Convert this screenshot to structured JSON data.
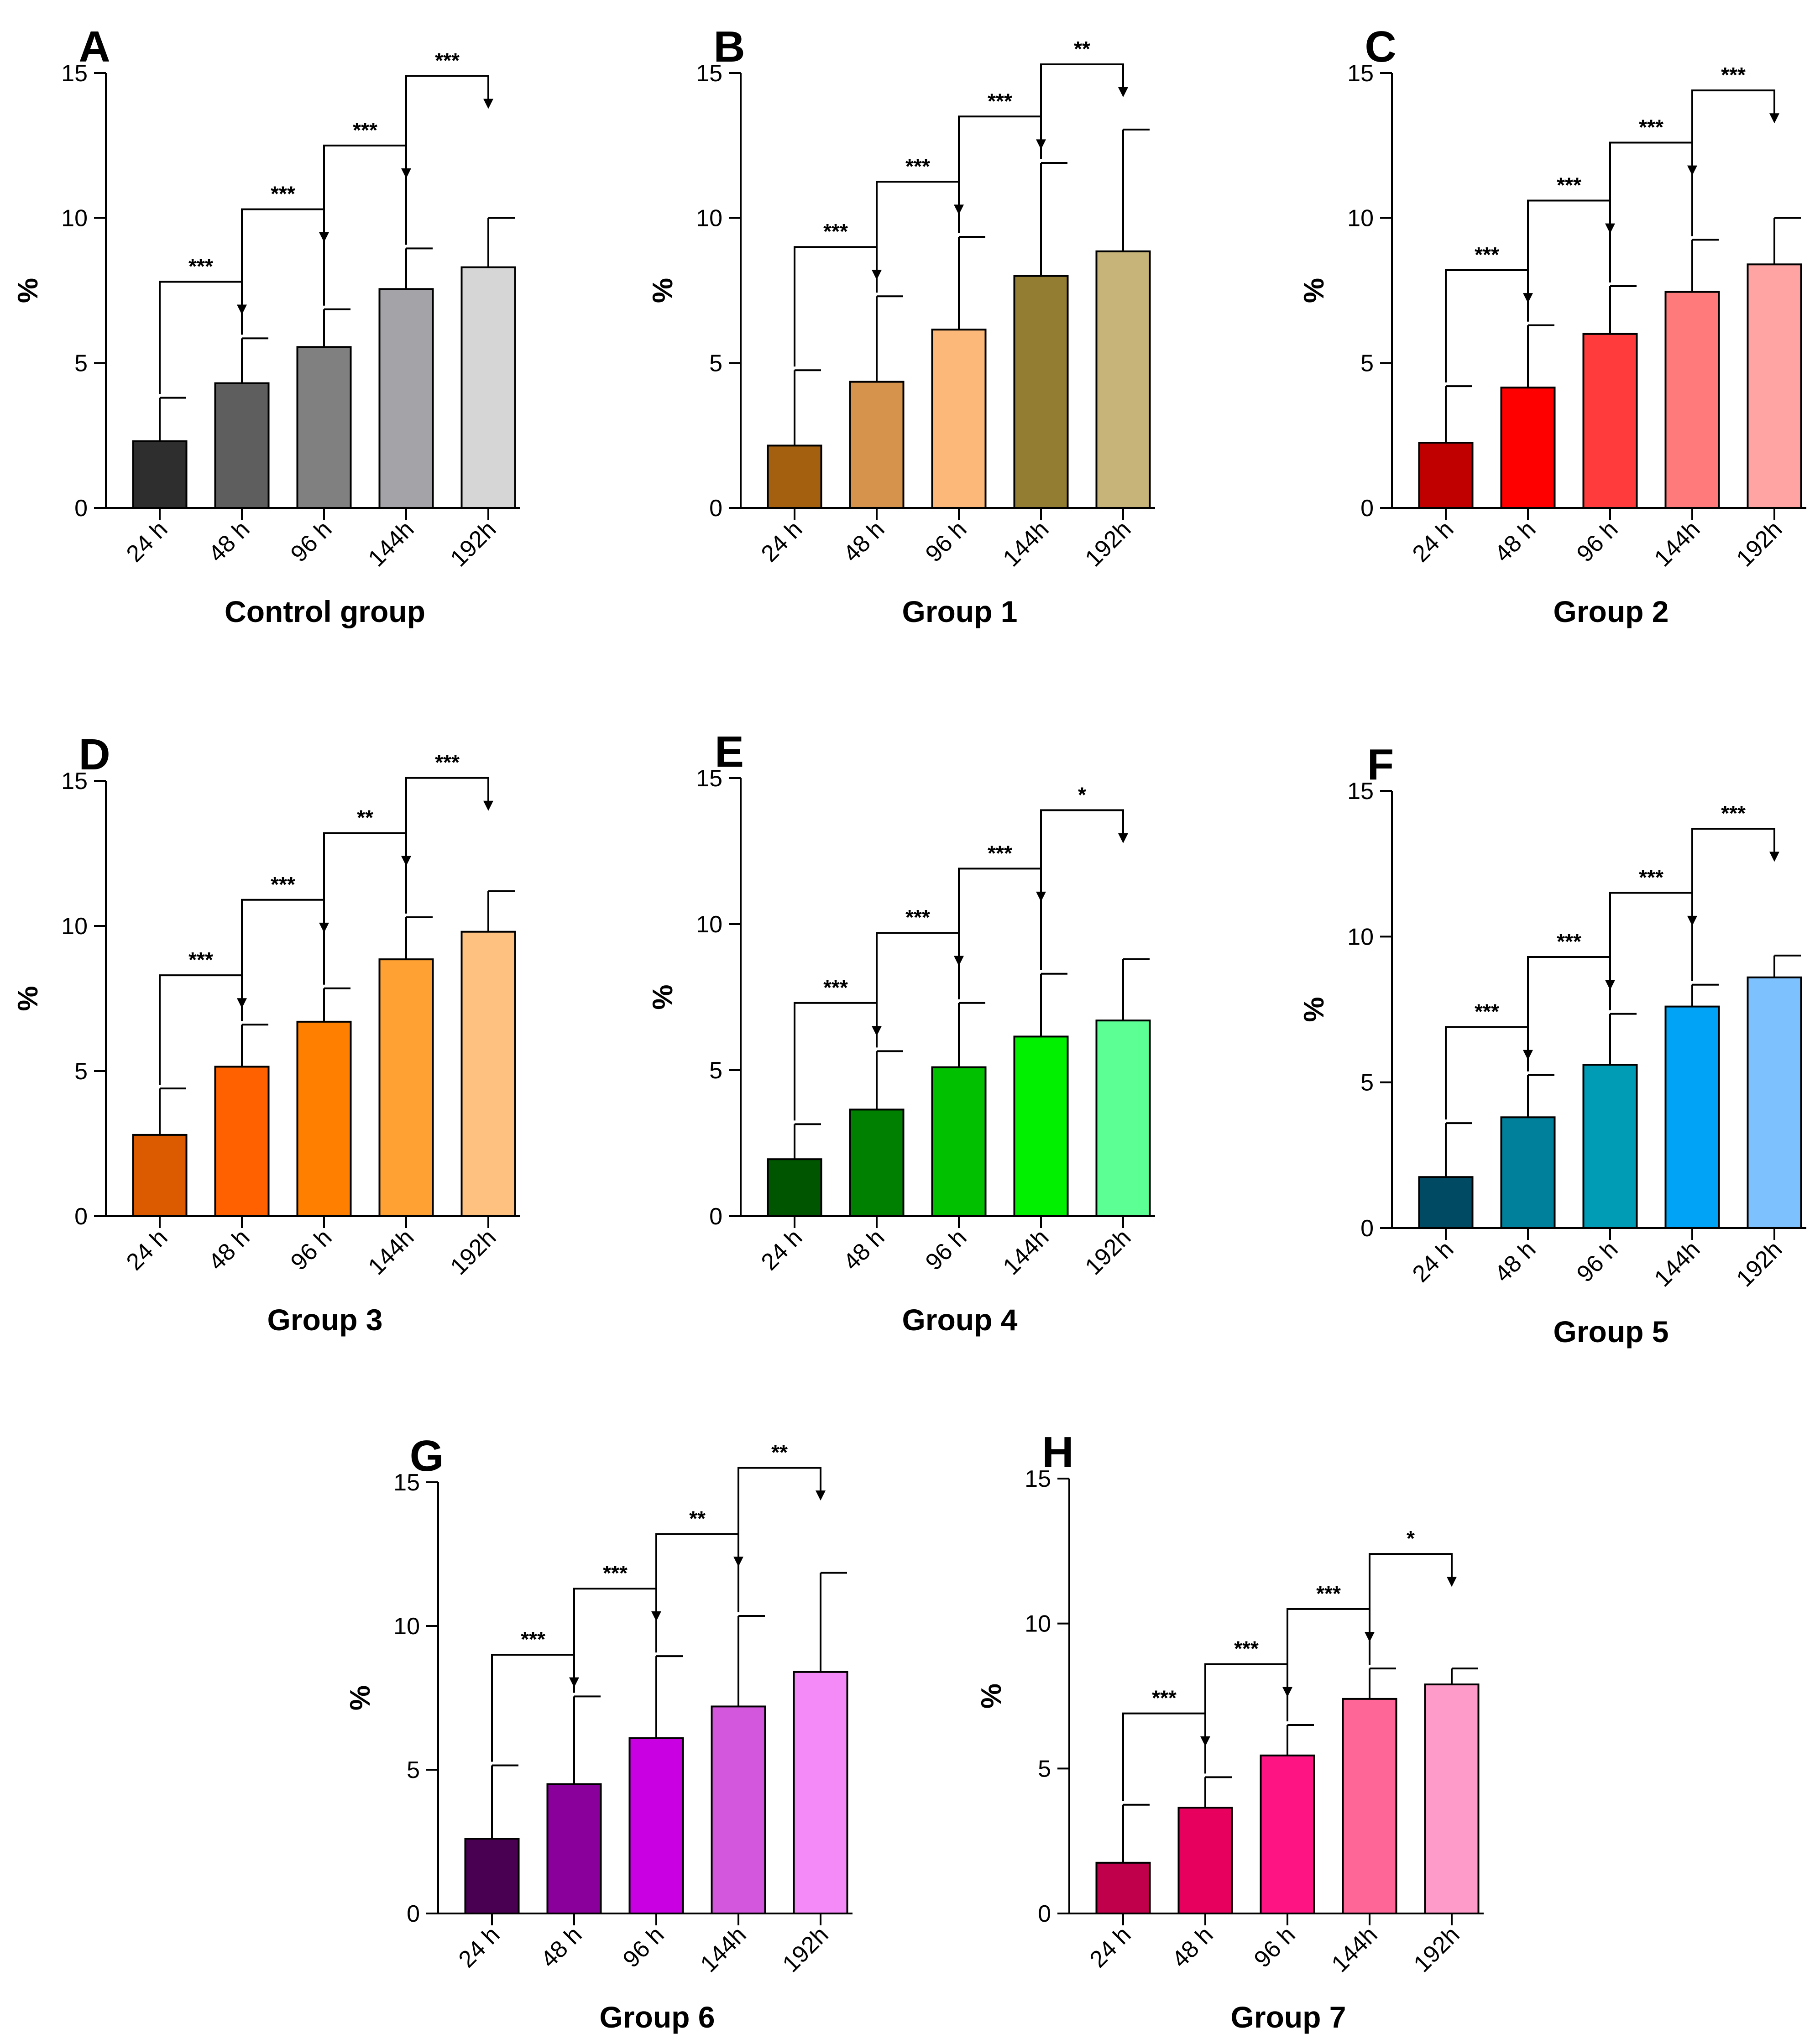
{
  "chart_data": [
    {
      "type": "bar",
      "panel_label": "A",
      "xlabel": "Control group",
      "ylabel": "%",
      "ylim": [
        0,
        15
      ],
      "yticks": [
        "0",
        "5",
        "10",
        "15"
      ],
      "categories": [
        "24 h",
        "48 h",
        "96 h",
        "144h",
        "192h"
      ],
      "values": [
        2.3,
        4.3,
        5.55,
        7.55,
        8.3
      ],
      "errors": [
        1.5,
        1.55,
        1.3,
        1.4,
        1.7
      ],
      "colors": [
        "#2e2e2e",
        "#5e5e5e",
        "#808080",
        "#a4a4a8",
        "#d6d6d6"
      ],
      "significance": [
        {
          "from": 0,
          "to": 1,
          "level": 7.8,
          "label": "***"
        },
        {
          "from": 1,
          "to": 2,
          "level": 10.3,
          "label": "***"
        },
        {
          "from": 2,
          "to": 3,
          "level": 12.5,
          "label": "***"
        },
        {
          "from": 3,
          "to": 4,
          "level": 14.9,
          "label": "***"
        }
      ]
    },
    {
      "type": "bar",
      "panel_label": "B",
      "xlabel": "Group 1",
      "ylabel": "%",
      "ylim": [
        0,
        15
      ],
      "yticks": [
        "0",
        "5",
        "10",
        "15"
      ],
      "categories": [
        "24 h",
        "48 h",
        "96 h",
        "144h",
        "192h"
      ],
      "values": [
        2.15,
        4.35,
        6.15,
        8.0,
        8.85
      ],
      "errors": [
        2.6,
        2.95,
        3.2,
        3.9,
        4.2
      ],
      "colors": [
        "#a5600f",
        "#d5934b",
        "#fbb879",
        "#937d33",
        "#c7b479"
      ],
      "significance": [
        {
          "from": 0,
          "to": 1,
          "level": 9.0,
          "label": "***"
        },
        {
          "from": 1,
          "to": 2,
          "level": 11.25,
          "label": "***"
        },
        {
          "from": 2,
          "to": 3,
          "level": 13.5,
          "label": "***"
        },
        {
          "from": 3,
          "to": 4,
          "level": 15.3,
          "label": "**"
        }
      ]
    },
    {
      "type": "bar",
      "panel_label": "C",
      "xlabel": "Group 2",
      "ylabel": "%",
      "ylim": [
        0,
        15
      ],
      "yticks": [
        "0",
        "5",
        "10",
        "15"
      ],
      "categories": [
        "24 h",
        "48 h",
        "96 h",
        "144h",
        "192h"
      ],
      "values": [
        2.25,
        4.15,
        6.0,
        7.45,
        8.4
      ],
      "errors": [
        1.95,
        2.15,
        1.65,
        1.8,
        1.6
      ],
      "colors": [
        "#c00000",
        "#ff0000",
        "#ff3b3b",
        "#ff7b7b",
        "#ffa3a3"
      ],
      "significance": [
        {
          "from": 0,
          "to": 1,
          "level": 8.2,
          "label": "***"
        },
        {
          "from": 1,
          "to": 2,
          "level": 10.6,
          "label": "***"
        },
        {
          "from": 2,
          "to": 3,
          "level": 12.6,
          "label": "***"
        },
        {
          "from": 3,
          "to": 4,
          "level": 14.4,
          "label": "***"
        }
      ]
    },
    {
      "type": "bar",
      "panel_label": "D",
      "xlabel": "Group 3",
      "ylabel": "%",
      "ylim": [
        0,
        15
      ],
      "yticks": [
        "0",
        "5",
        "10",
        "15"
      ],
      "categories": [
        "24 h",
        "48 h",
        "96 h",
        "144h",
        "192h"
      ],
      "values": [
        2.8,
        5.15,
        6.7,
        8.85,
        9.8
      ],
      "errors": [
        1.6,
        1.45,
        1.15,
        1.45,
        1.4
      ],
      "colors": [
        "#dc5a00",
        "#ff6000",
        "#ff8000",
        "#ffa133",
        "#ffc17f"
      ],
      "significance": [
        {
          "from": 0,
          "to": 1,
          "level": 8.3,
          "label": "***"
        },
        {
          "from": 1,
          "to": 2,
          "level": 10.9,
          "label": "***"
        },
        {
          "from": 2,
          "to": 3,
          "level": 13.2,
          "label": "**"
        },
        {
          "from": 3,
          "to": 4,
          "level": 15.1,
          "label": "***"
        }
      ]
    },
    {
      "type": "bar",
      "panel_label": "E",
      "xlabel": "Group 4",
      "ylabel": "%",
      "ylim": [
        0,
        15
      ],
      "yticks": [
        "0",
        "5",
        "10",
        "15"
      ],
      "categories": [
        "24 h",
        "48 h",
        "96 h",
        "144h",
        "192h"
      ],
      "values": [
        1.95,
        3.65,
        5.1,
        6.15,
        6.7
      ],
      "errors": [
        1.2,
        2.0,
        2.2,
        2.15,
        2.1
      ],
      "colors": [
        "#005500",
        "#008000",
        "#00c000",
        "#00f000",
        "#5bff93"
      ],
      "significance": [
        {
          "from": 0,
          "to": 1,
          "level": 7.3,
          "label": "***"
        },
        {
          "from": 1,
          "to": 2,
          "level": 9.7,
          "label": "***"
        },
        {
          "from": 2,
          "to": 3,
          "level": 11.9,
          "label": "***"
        },
        {
          "from": 3,
          "to": 4,
          "level": 13.9,
          "label": "*"
        }
      ]
    },
    {
      "type": "bar",
      "panel_label": "F",
      "xlabel": "Group 5",
      "ylabel": "%",
      "ylim": [
        0,
        15
      ],
      "yticks": [
        "0",
        "5",
        "10",
        "15"
      ],
      "categories": [
        "24 h",
        "48 h",
        "96 h",
        "144h",
        "192h"
      ],
      "values": [
        1.75,
        3.8,
        5.6,
        7.6,
        8.6
      ],
      "errors": [
        1.85,
        1.45,
        1.75,
        0.75,
        0.75
      ],
      "colors": [
        "#004a63",
        "#00809a",
        "#009bb4",
        "#00a3f5",
        "#7dc1ff"
      ],
      "significance": [
        {
          "from": 0,
          "to": 1,
          "level": 6.9,
          "label": "***"
        },
        {
          "from": 1,
          "to": 2,
          "level": 9.3,
          "label": "***"
        },
        {
          "from": 2,
          "to": 3,
          "level": 11.5,
          "label": "***"
        },
        {
          "from": 3,
          "to": 4,
          "level": 13.7,
          "label": "***"
        }
      ]
    },
    {
      "type": "bar",
      "panel_label": "G",
      "xlabel": "Group 6",
      "ylabel": "%",
      "ylim": [
        0,
        15
      ],
      "yticks": [
        "0",
        "5",
        "10",
        "15"
      ],
      "categories": [
        "24 h",
        "48 h",
        "96 h",
        "144h",
        "192h"
      ],
      "values": [
        2.6,
        4.5,
        6.1,
        7.2,
        8.4
      ],
      "errors": [
        2.55,
        3.05,
        2.85,
        3.15,
        3.45
      ],
      "colors": [
        "#4a0052",
        "#8a009a",
        "#c800e2",
        "#d257dc",
        "#f38af7"
      ],
      "significance": [
        {
          "from": 0,
          "to": 1,
          "level": 9.0,
          "label": "***"
        },
        {
          "from": 1,
          "to": 2,
          "level": 11.3,
          "label": "***"
        },
        {
          "from": 2,
          "to": 3,
          "level": 13.2,
          "label": "**"
        },
        {
          "from": 3,
          "to": 4,
          "level": 15.5,
          "label": "**"
        }
      ]
    },
    {
      "type": "bar",
      "panel_label": "H",
      "xlabel": "Group 7",
      "ylabel": "%",
      "ylim": [
        0,
        15
      ],
      "yticks": [
        "0",
        "5",
        "10",
        "15"
      ],
      "categories": [
        "24 h",
        "48 h",
        "96 h",
        "144h",
        "192h"
      ],
      "values": [
        1.75,
        3.65,
        5.45,
        7.4,
        7.9
      ],
      "errors": [
        2.0,
        1.05,
        1.05,
        1.05,
        0.55
      ],
      "colors": [
        "#c0004a",
        "#e8005e",
        "#ff1484",
        "#ff6698",
        "#ff9bc8"
      ],
      "significance": [
        {
          "from": 0,
          "to": 1,
          "level": 6.9,
          "label": "***"
        },
        {
          "from": 1,
          "to": 2,
          "level": 8.6,
          "label": "***"
        },
        {
          "from": 2,
          "to": 3,
          "level": 10.5,
          "label": "***"
        },
        {
          "from": 3,
          "to": 4,
          "level": 12.4,
          "label": "*"
        }
      ]
    }
  ]
}
